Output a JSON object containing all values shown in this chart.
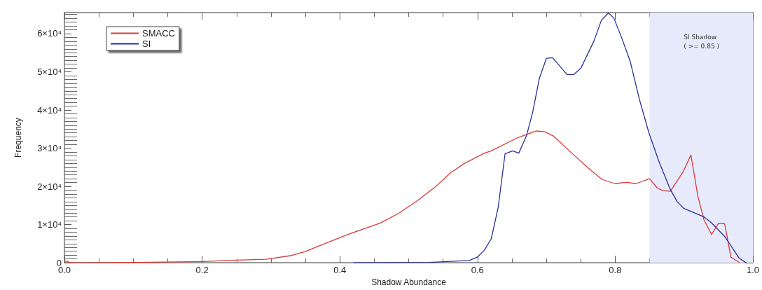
{
  "chart_data": {
    "type": "line",
    "xlabel": "Shadow Abundance",
    "ylabel": "Frequency",
    "xlim": [
      0,
      1
    ],
    "xticks": [
      {
        "value": 0,
        "label": "0.0"
      },
      0.2,
      0.4,
      0.6,
      0.8,
      {
        "value": 1,
        "label": "1.0"
      }
    ],
    "ylim": [
      0,
      65500
    ],
    "yticks": [
      0,
      {
        "value": 10000,
        "label": "1×10⁴"
      },
      {
        "value": 20000,
        "label": "2×10⁴"
      },
      {
        "value": 30000,
        "label": "3×10⁴"
      },
      {
        "value": 40000,
        "label": "4×10⁴"
      },
      {
        "value": 50000,
        "label": "5×10⁴"
      },
      {
        "value": 60000,
        "label": "6×10⁴"
      }
    ],
    "grid": false,
    "legend": "top left",
    "marker": "none",
    "line_style": "solid",
    "bands": [
      {
        "axis": "x",
        "from": 0.85,
        "to": 1,
        "label": "SI Shadow\n( >= 0.85 )",
        "color": "#e6eafa"
      }
    ],
    "series": [
      {
        "name": "SMACC",
        "color": "#d93a3a",
        "x": [
          0,
          0.01,
          0.1,
          0.2,
          0.25,
          0.293,
          0.33,
          0.349,
          0.371,
          0.41,
          0.459,
          0.486,
          0.513,
          0.539,
          0.561,
          0.581,
          0.61,
          0.62,
          0.659,
          0.685,
          0.698,
          0.71,
          0.737,
          0.761,
          0.781,
          0.8,
          0.812,
          0.82,
          0.83,
          0.85,
          0.861,
          0.869,
          0.88,
          0.898,
          0.91,
          0.92,
          0.929,
          0.94,
          0.95,
          0.959,
          0.968,
          0.98
        ],
        "values": [
          500,
          0,
          100,
          300,
          700,
          900,
          1900,
          2900,
          4500,
          7300,
          10400,
          13000,
          16300,
          19900,
          23600,
          26000,
          28700,
          29300,
          32800,
          34500,
          34300,
          33200,
          28700,
          24800,
          21800,
          20700,
          21000,
          21000,
          20700,
          22000,
          19600,
          18900,
          18700,
          23600,
          28200,
          17500,
          11200,
          7400,
          10300,
          10200,
          1500,
          100
        ]
      },
      {
        "name": "SI",
        "color": "#2b2f9a",
        "x": [
          0.42,
          0.53,
          0.588,
          0.6,
          0.61,
          0.62,
          0.63,
          0.64,
          0.651,
          0.66,
          0.671,
          0.68,
          0.69,
          0.7,
          0.709,
          0.72,
          0.73,
          0.74,
          0.75,
          0.769,
          0.78,
          0.79,
          0.798,
          0.81,
          0.822,
          0.835,
          0.849,
          0.864,
          0.88,
          0.89,
          0.9,
          0.929,
          0.939,
          0.959,
          0.969,
          0.98,
          0.99
        ],
        "values": [
          0,
          100,
          600,
          1500,
          3300,
          6300,
          14500,
          28500,
          29300,
          28700,
          33200,
          39300,
          48400,
          53500,
          53700,
          51400,
          49300,
          49300,
          50900,
          58000,
          63500,
          65400,
          64100,
          58600,
          52600,
          42900,
          34000,
          26300,
          19200,
          16000,
          14200,
          12000,
          10600,
          6900,
          4200,
          1200,
          0
        ]
      }
    ]
  }
}
